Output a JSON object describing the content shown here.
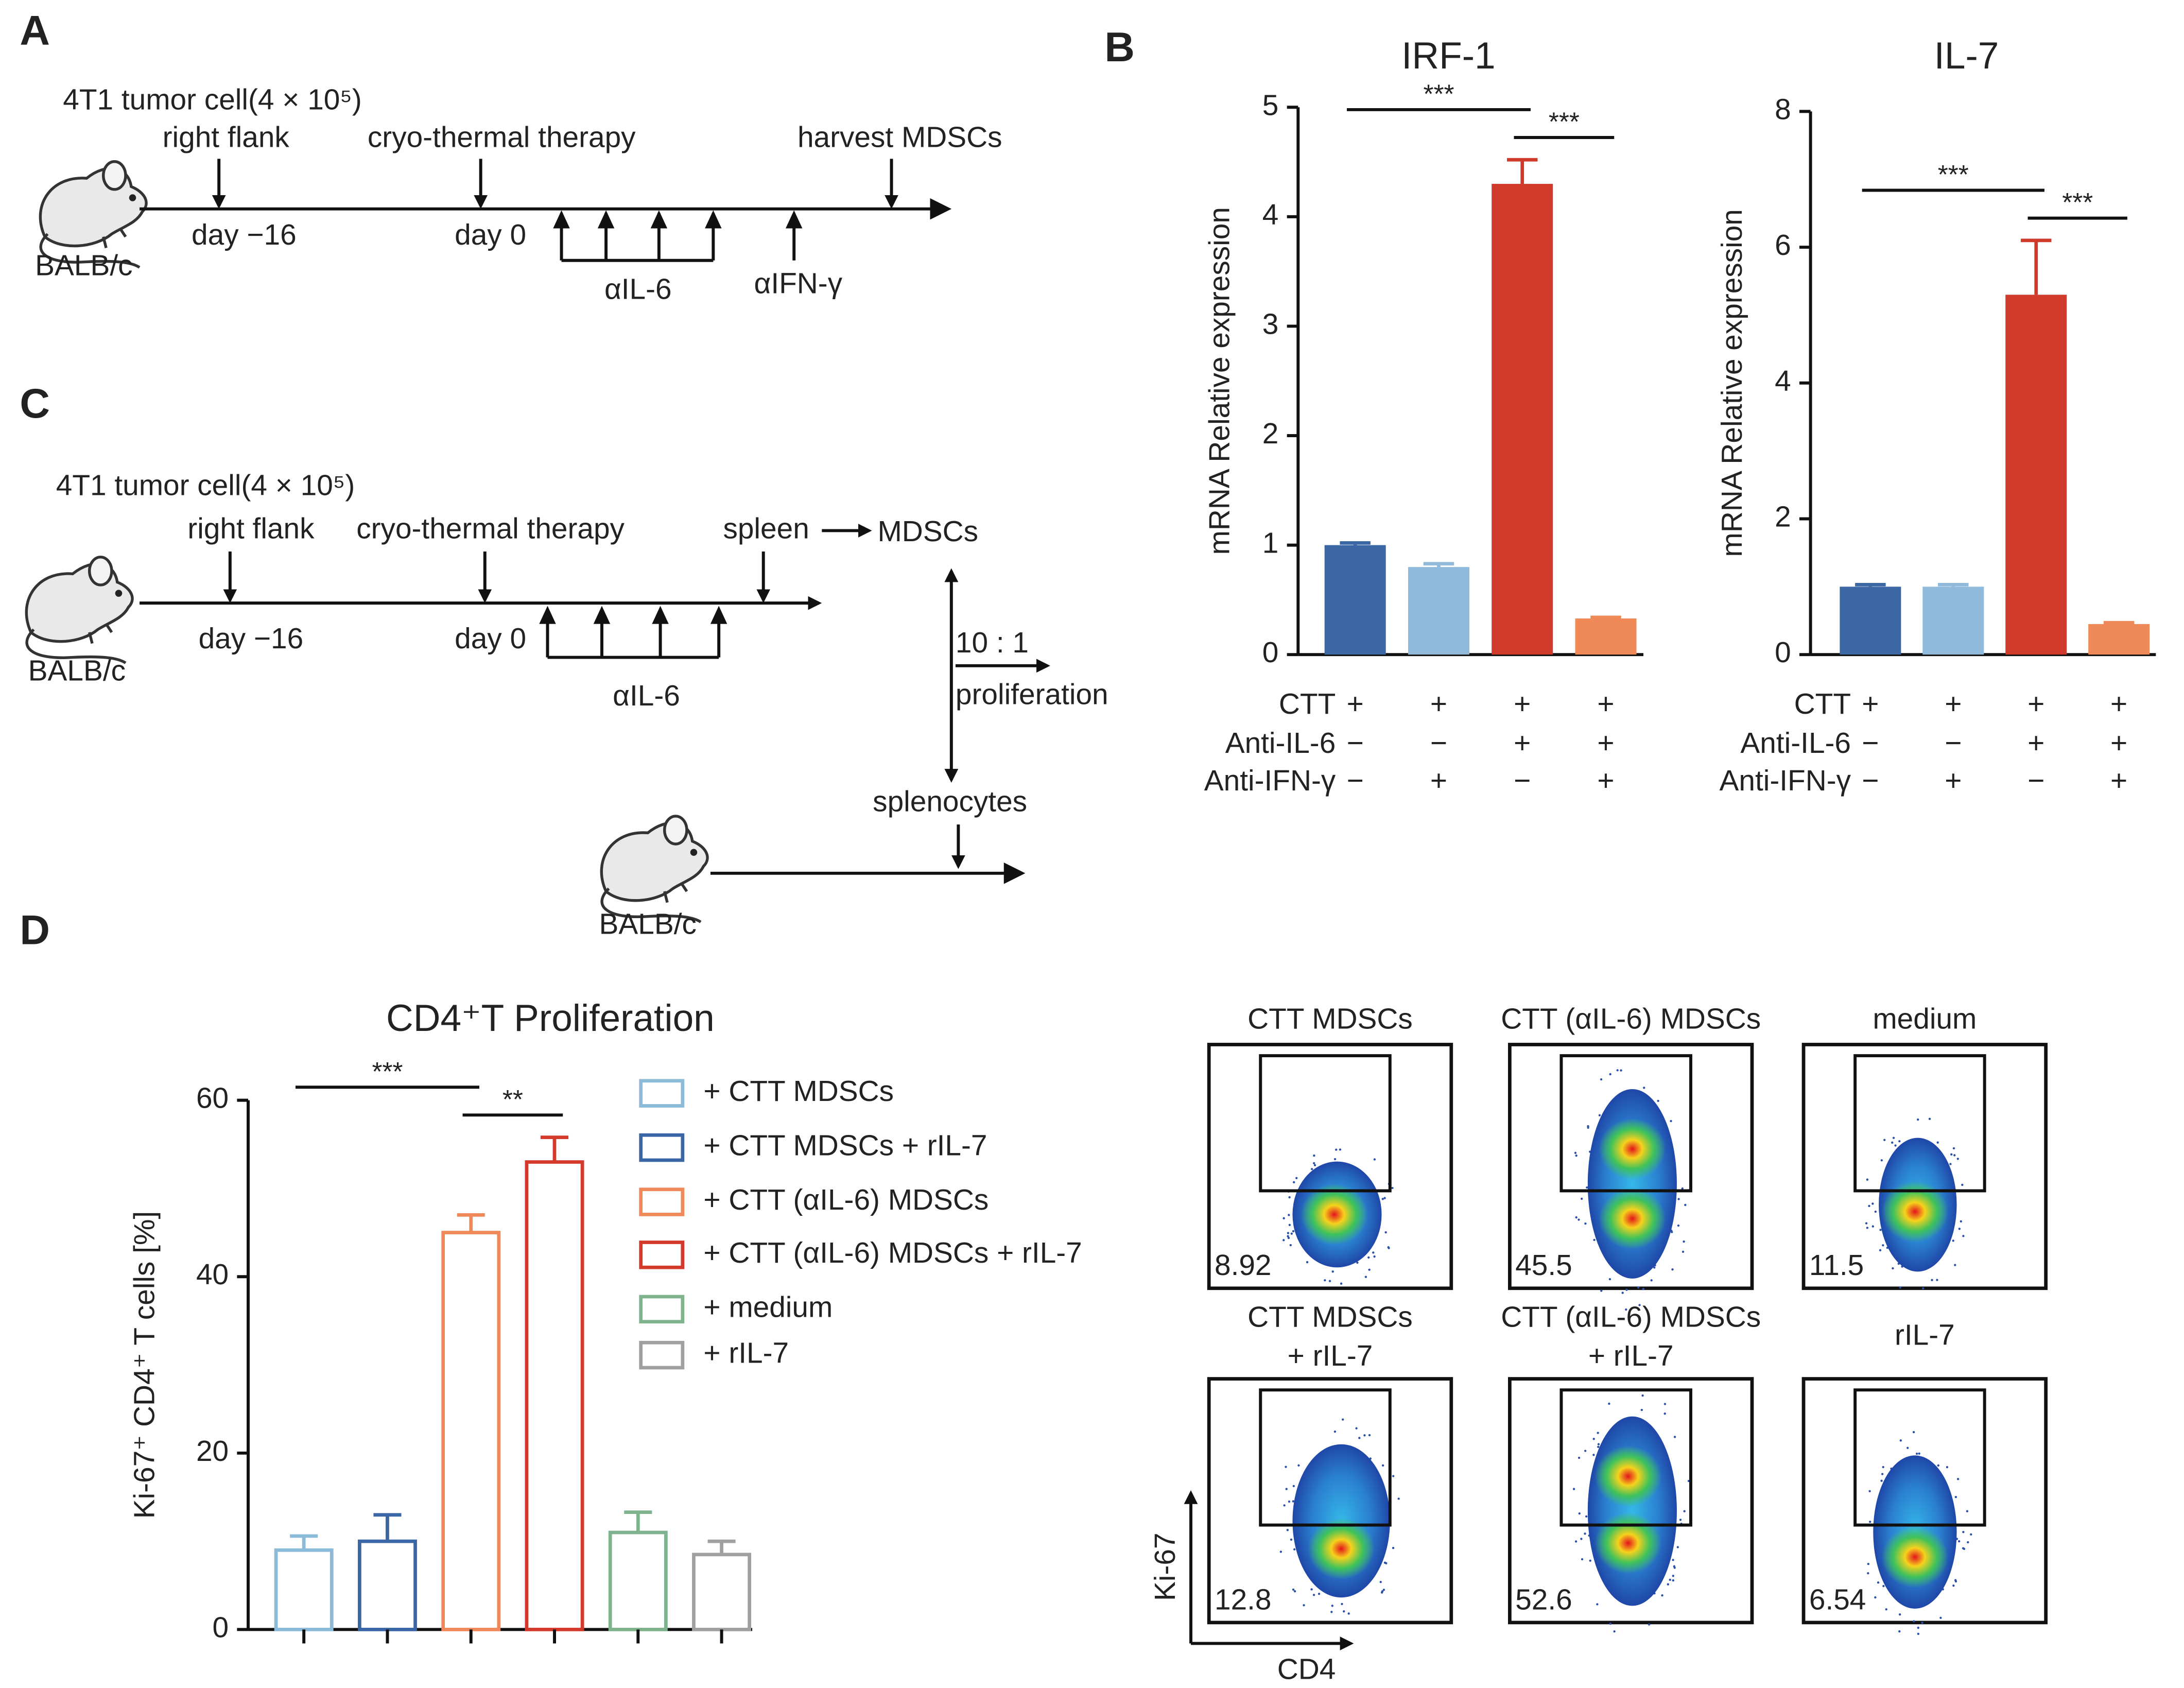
{
  "panel_labels": [
    "A",
    "B",
    "C",
    "D"
  ],
  "diagram_a": {
    "tumor": "4T1 tumor cell(4 × 10⁵)",
    "site": "right flank",
    "therapy": "cryo-thermal therapy",
    "harvest": "harvest MDSCs",
    "day1": "day −16",
    "day2": "day 0",
    "antibody1": "αIL-6",
    "antibody2": "αIFN-γ",
    "mouse": "BALB/c"
  },
  "diagram_c": {
    "tumor": "4T1 tumor cell(4 × 10⁵)",
    "site": "right flank",
    "therapy": "cryo-thermal therapy",
    "spleen": "spleen",
    "cells": "MDSCs",
    "day1": "day −16",
    "day2": "day 0",
    "antibody": "αIL-6",
    "ratio": "10 : 1",
    "assay": "proliferation",
    "splenocytes": "splenocytes",
    "mouse1": "BALB/c",
    "mouse2": "BALB/c"
  },
  "chart_data": [
    {
      "type": "bar",
      "title": "IRF-1",
      "y_label": "mRNA Relative expression",
      "bar_style": "filled",
      "values": [
        1.0,
        0.8,
        4.3,
        0.33
      ],
      "errors": [
        0.02,
        0.03,
        0.22,
        0.01
      ],
      "colors": [
        "#3b67a4",
        "#8fbadb",
        "#cf3a2b",
        "#ef8a58"
      ],
      "ylim": [
        0,
        5
      ],
      "yticks": [
        0,
        1,
        2,
        3,
        4,
        5
      ],
      "conditions": [
        {
          "label": "CTT",
          "signs": [
            "+",
            "+",
            "+",
            "+"
          ]
        },
        {
          "label": "Anti-IL-6",
          "signs": [
            "−",
            "−",
            "+",
            "+"
          ]
        },
        {
          "label": "Anti-IFN-γ",
          "signs": [
            "−",
            "+",
            "−",
            "+"
          ]
        }
      ],
      "significance": [
        {
          "label": "***",
          "between": [
            0,
            2
          ]
        },
        {
          "label": "***",
          "between": [
            2,
            3
          ]
        }
      ]
    },
    {
      "type": "bar",
      "title": "IL-7",
      "y_label": "mRNA Relative expression",
      "bar_style": "filled",
      "values": [
        1.0,
        1.0,
        5.3,
        0.45
      ],
      "errors": [
        0.03,
        0.03,
        0.8,
        0.02
      ],
      "colors": [
        "#3b67a4",
        "#8fbadb",
        "#cf3a2b",
        "#ef8a58"
      ],
      "ylim": [
        0,
        8
      ],
      "yticks": [
        0,
        2,
        4,
        6,
        8
      ],
      "conditions": [
        {
          "label": "CTT",
          "signs": [
            "+",
            "+",
            "+",
            "+"
          ]
        },
        {
          "label": "Anti-IL-6",
          "signs": [
            "−",
            "−",
            "+",
            "+"
          ]
        },
        {
          "label": "Anti-IFN-γ",
          "signs": [
            "−",
            "+",
            "−",
            "+"
          ]
        }
      ],
      "significance": [
        {
          "label": "***",
          "between": [
            0,
            2
          ]
        },
        {
          "label": "***",
          "between": [
            2,
            3
          ]
        }
      ]
    },
    {
      "type": "bar",
      "title": "CD4⁺T Proliferation",
      "y_label": "Ki-67⁺ CD4⁺ T cells [%]",
      "bar_style": "outline",
      "categories": [
        null,
        null,
        null,
        null,
        null,
        null
      ],
      "values": [
        9,
        10,
        45,
        53,
        11,
        8.5
      ],
      "errors": [
        1.6,
        3.0,
        2.0,
        2.8,
        2.3,
        1.5
      ],
      "colors": [
        "#8bbbd9",
        "#3a66a5",
        "#f0895a",
        "#d33a2c",
        "#7fb38e",
        "#a0a0a0"
      ],
      "legend": [
        "+ CTT MDSCs",
        "+ CTT MDSCs + rIL-7",
        "+ CTT (αIL-6) MDSCs",
        "+ CTT (αIL-6) MDSCs + rIL-7",
        "+  medium",
        "+ rIL-7"
      ],
      "ylim": [
        0,
        60
      ],
      "yticks": [
        0,
        20,
        40,
        60
      ],
      "significance": [
        {
          "label": "***",
          "between": [
            0,
            2
          ]
        },
        {
          "label": "**",
          "between": [
            2,
            3
          ]
        }
      ]
    }
  ],
  "flow": {
    "y_axis": "Ki-67",
    "x_axis": "CD4",
    "plots": [
      {
        "title": [
          "CTT MDSCs"
        ],
        "percent": 8.92
      },
      {
        "title": [
          "CTT (αIL-6) MDSCs"
        ],
        "percent": 45.5
      },
      {
        "title": [
          "medium"
        ],
        "percent": 11.5
      },
      {
        "title": [
          "CTT MDSCs",
          "+ rIL-7"
        ],
        "percent": 12.8
      },
      {
        "title": [
          "CTT (αIL-6) MDSCs",
          "+ rIL-7"
        ],
        "percent": 52.6
      },
      {
        "title": [
          "rIL-7"
        ],
        "percent": 6.54
      }
    ]
  }
}
